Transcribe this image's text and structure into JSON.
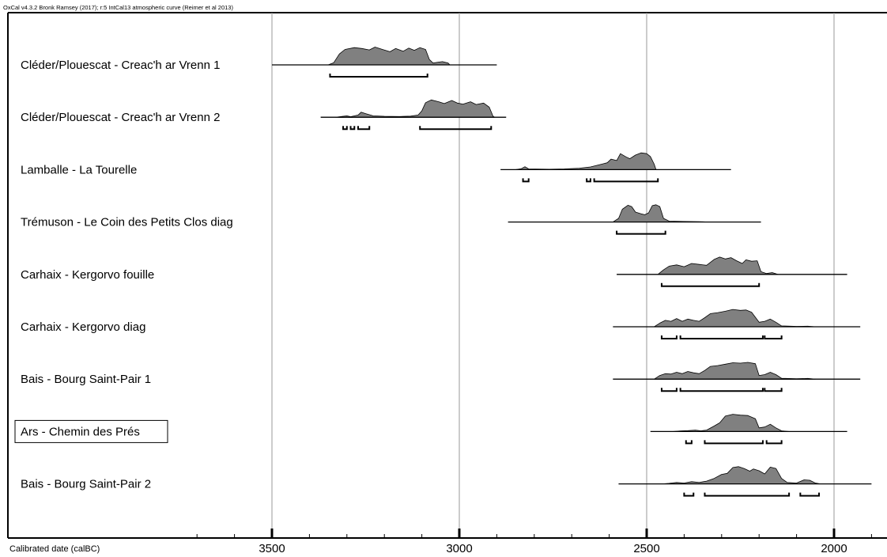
{
  "credit": "OxCal v4.3.2 Bronk Ramsey (2017); r:5 IntCal13 atmospheric curve (Reimer et al 2013)",
  "chart_data": {
    "type": "area",
    "xlabel": "Calibrated date (calBC)",
    "xlim": [
      3700,
      1860
    ],
    "x_reversed": true,
    "x_ticks": [
      3500,
      3000,
      2500,
      2000
    ],
    "gridlines": [
      3500,
      3000,
      2500,
      2000
    ],
    "grid": true,
    "colors": {
      "fill": "#808080",
      "line": "#000000"
    },
    "series": [
      {
        "name": "Cléder/Plouescat - Creac'h ar Vrenn 1",
        "range": [
          3500,
          2900
        ],
        "density": [
          [
            3350,
            0
          ],
          [
            3335,
            0.12
          ],
          [
            3320,
            0.6
          ],
          [
            3305,
            0.85
          ],
          [
            3280,
            0.95
          ],
          [
            3260,
            0.9
          ],
          [
            3240,
            0.82
          ],
          [
            3225,
            0.98
          ],
          [
            3205,
            0.85
          ],
          [
            3185,
            0.72
          ],
          [
            3170,
            0.9
          ],
          [
            3150,
            0.75
          ],
          [
            3135,
            0.92
          ],
          [
            3120,
            0.8
          ],
          [
            3105,
            0.95
          ],
          [
            3090,
            0.85
          ],
          [
            3080,
            0.3
          ],
          [
            3070,
            0.1
          ],
          [
            3055,
            0.15
          ],
          [
            3045,
            0.18
          ],
          [
            3030,
            0.1
          ],
          [
            3025,
            0
          ]
        ],
        "hpd": [
          [
            3345,
            3085
          ]
        ]
      },
      {
        "name": "Cléder/Plouescat - Creac'h ar Vrenn 2",
        "range": [
          3370,
          2875
        ],
        "density": [
          [
            3330,
            0
          ],
          [
            3300,
            0.08
          ],
          [
            3290,
            0.03
          ],
          [
            3270,
            0.12
          ],
          [
            3262,
            0.28
          ],
          [
            3250,
            0.2
          ],
          [
            3230,
            0.08
          ],
          [
            3200,
            0.05
          ],
          [
            3160,
            0.04
          ],
          [
            3130,
            0.06
          ],
          [
            3110,
            0.12
          ],
          [
            3100,
            0.35
          ],
          [
            3090,
            0.8
          ],
          [
            3075,
            0.95
          ],
          [
            3055,
            0.85
          ],
          [
            3040,
            0.75
          ],
          [
            3020,
            0.92
          ],
          [
            3005,
            0.78
          ],
          [
            2990,
            0.72
          ],
          [
            2970,
            0.85
          ],
          [
            2955,
            0.7
          ],
          [
            2935,
            0.78
          ],
          [
            2920,
            0.55
          ],
          [
            2910,
            0.05
          ],
          [
            2905,
            0
          ]
        ],
        "hpd": [
          [
            3310,
            3300
          ],
          [
            3290,
            3280
          ],
          [
            3270,
            3240
          ],
          [
            3105,
            2915
          ]
        ]
      },
      {
        "name": "Lamballe - La Tourelle",
        "range": [
          2890,
          2275
        ],
        "density": [
          [
            2850,
            0
          ],
          [
            2835,
            0.05
          ],
          [
            2825,
            0.16
          ],
          [
            2815,
            0.04
          ],
          [
            2760,
            0.02
          ],
          [
            2720,
            0.04
          ],
          [
            2680,
            0.08
          ],
          [
            2650,
            0.15
          ],
          [
            2620,
            0.3
          ],
          [
            2605,
            0.38
          ],
          [
            2595,
            0.58
          ],
          [
            2580,
            0.5
          ],
          [
            2570,
            0.88
          ],
          [
            2555,
            0.7
          ],
          [
            2545,
            0.6
          ],
          [
            2530,
            0.8
          ],
          [
            2515,
            0.92
          ],
          [
            2500,
            0.88
          ],
          [
            2490,
            0.72
          ],
          [
            2480,
            0.3
          ],
          [
            2475,
            0
          ]
        ],
        "hpd": [
          [
            2830,
            2815
          ],
          [
            2660,
            2650
          ],
          [
            2640,
            2470
          ]
        ]
      },
      {
        "name": "Trémuson - Le Coin des Petits Clos diag",
        "range": [
          2870,
          2195
        ],
        "density": [
          [
            2590,
            0
          ],
          [
            2575,
            0.2
          ],
          [
            2565,
            0.7
          ],
          [
            2550,
            0.92
          ],
          [
            2540,
            0.85
          ],
          [
            2530,
            0.55
          ],
          [
            2515,
            0.45
          ],
          [
            2505,
            0.4
          ],
          [
            2495,
            0.5
          ],
          [
            2485,
            0.9
          ],
          [
            2475,
            0.95
          ],
          [
            2465,
            0.85
          ],
          [
            2455,
            0.2
          ],
          [
            2440,
            0.05
          ],
          [
            2400,
            0.03
          ],
          [
            2360,
            0.02
          ],
          [
            2330,
            0
          ]
        ],
        "hpd": [
          [
            2580,
            2450
          ]
        ]
      },
      {
        "name": "Carhaix - Kergorvo fouille",
        "range": [
          2580,
          1965
        ],
        "density": [
          [
            2470,
            0
          ],
          [
            2455,
            0.25
          ],
          [
            2440,
            0.45
          ],
          [
            2420,
            0.52
          ],
          [
            2400,
            0.42
          ],
          [
            2380,
            0.6
          ],
          [
            2360,
            0.55
          ],
          [
            2340,
            0.5
          ],
          [
            2320,
            0.82
          ],
          [
            2305,
            0.95
          ],
          [
            2290,
            0.85
          ],
          [
            2275,
            0.92
          ],
          [
            2260,
            0.75
          ],
          [
            2245,
            0.6
          ],
          [
            2235,
            0.8
          ],
          [
            2220,
            0.72
          ],
          [
            2205,
            0.75
          ],
          [
            2195,
            0.15
          ],
          [
            2180,
            0.05
          ],
          [
            2165,
            0.1
          ],
          [
            2150,
            0
          ]
        ],
        "hpd": [
          [
            2460,
            2200
          ]
        ]
      },
      {
        "name": "Carhaix - Kergorvo diag",
        "range": [
          2590,
          1930
        ],
        "density": [
          [
            2480,
            0
          ],
          [
            2465,
            0.2
          ],
          [
            2450,
            0.35
          ],
          [
            2435,
            0.3
          ],
          [
            2420,
            0.45
          ],
          [
            2405,
            0.3
          ],
          [
            2390,
            0.42
          ],
          [
            2375,
            0.35
          ],
          [
            2360,
            0.3
          ],
          [
            2345,
            0.5
          ],
          [
            2330,
            0.72
          ],
          [
            2310,
            0.78
          ],
          [
            2290,
            0.85
          ],
          [
            2270,
            0.95
          ],
          [
            2250,
            0.9
          ],
          [
            2235,
            0.92
          ],
          [
            2220,
            0.8
          ],
          [
            2200,
            0.25
          ],
          [
            2185,
            0.3
          ],
          [
            2170,
            0.42
          ],
          [
            2155,
            0.25
          ],
          [
            2140,
            0.05
          ],
          [
            2100,
            0.02
          ],
          [
            2070,
            0.03
          ],
          [
            2050,
            0
          ]
        ],
        "hpd": [
          [
            2460,
            2420
          ],
          [
            2410,
            2190
          ],
          [
            2185,
            2140
          ]
        ]
      },
      {
        "name": "Bais - Bourg Saint-Pair 1",
        "range": [
          2590,
          1930
        ],
        "density": [
          [
            2480,
            0
          ],
          [
            2465,
            0.2
          ],
          [
            2450,
            0.3
          ],
          [
            2435,
            0.28
          ],
          [
            2420,
            0.38
          ],
          [
            2405,
            0.3
          ],
          [
            2390,
            0.42
          ],
          [
            2375,
            0.35
          ],
          [
            2360,
            0.3
          ],
          [
            2345,
            0.48
          ],
          [
            2330,
            0.7
          ],
          [
            2310,
            0.75
          ],
          [
            2290,
            0.82
          ],
          [
            2270,
            0.9
          ],
          [
            2250,
            0.88
          ],
          [
            2230,
            0.92
          ],
          [
            2210,
            0.85
          ],
          [
            2200,
            0.2
          ],
          [
            2185,
            0.25
          ],
          [
            2170,
            0.38
          ],
          [
            2155,
            0.25
          ],
          [
            2140,
            0.05
          ],
          [
            2100,
            0.02
          ],
          [
            2070,
            0.04
          ],
          [
            2050,
            0
          ]
        ],
        "hpd": [
          [
            2460,
            2420
          ],
          [
            2410,
            2190
          ],
          [
            2185,
            2140
          ]
        ]
      },
      {
        "name": "Ars - Chemin des Prés",
        "range": [
          2490,
          1965
        ],
        "density": [
          [
            2430,
            0
          ],
          [
            2410,
            0.03
          ],
          [
            2390,
            0.05
          ],
          [
            2370,
            0.08
          ],
          [
            2355,
            0.04
          ],
          [
            2340,
            0.08
          ],
          [
            2320,
            0.3
          ],
          [
            2305,
            0.48
          ],
          [
            2290,
            0.85
          ],
          [
            2270,
            0.95
          ],
          [
            2250,
            0.9
          ],
          [
            2230,
            0.88
          ],
          [
            2210,
            0.7
          ],
          [
            2200,
            0.2
          ],
          [
            2185,
            0.25
          ],
          [
            2170,
            0.4
          ],
          [
            2155,
            0.2
          ],
          [
            2140,
            0.04
          ],
          [
            2120,
            0
          ]
        ],
        "hpd": [
          [
            2395,
            2380
          ],
          [
            2345,
            2190
          ],
          [
            2180,
            2140
          ]
        ]
      },
      {
        "name": "Bais - Bourg Saint-Pair 2",
        "range": [
          2575,
          1900
        ],
        "density": [
          [
            2460,
            0
          ],
          [
            2440,
            0.03
          ],
          [
            2420,
            0.08
          ],
          [
            2400,
            0.05
          ],
          [
            2380,
            0.12
          ],
          [
            2360,
            0.08
          ],
          [
            2340,
            0.15
          ],
          [
            2320,
            0.3
          ],
          [
            2300,
            0.52
          ],
          [
            2285,
            0.58
          ],
          [
            2270,
            0.9
          ],
          [
            2255,
            0.95
          ],
          [
            2240,
            0.85
          ],
          [
            2225,
            0.7
          ],
          [
            2215,
            0.82
          ],
          [
            2200,
            0.72
          ],
          [
            2185,
            0.55
          ],
          [
            2170,
            0.92
          ],
          [
            2155,
            0.85
          ],
          [
            2140,
            0.3
          ],
          [
            2125,
            0.08
          ],
          [
            2100,
            0.05
          ],
          [
            2080,
            0.22
          ],
          [
            2065,
            0.2
          ],
          [
            2050,
            0.05
          ],
          [
            2035,
            0
          ]
        ],
        "hpd": [
          [
            2400,
            2375
          ],
          [
            2345,
            2120
          ],
          [
            2090,
            2040
          ]
        ]
      }
    ],
    "highlighted": "Ars - Chemin des Prés"
  }
}
